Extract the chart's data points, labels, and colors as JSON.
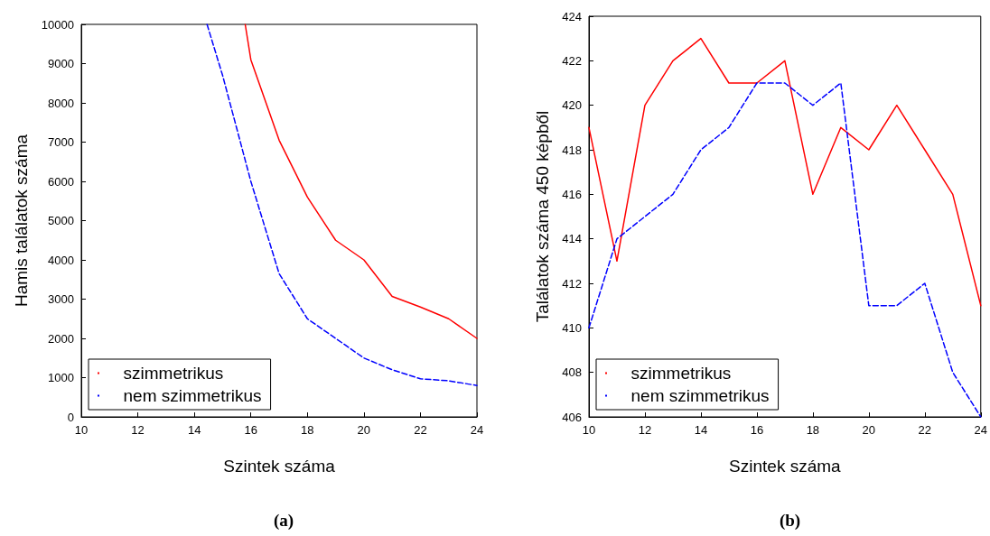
{
  "chart_data": [
    {
      "type": "line",
      "title": "(a)",
      "xlabel": "Szintek száma",
      "ylabel": "Hamis találatok száma",
      "xlim": [
        10,
        24
      ],
      "xticks": [
        10,
        12,
        14,
        16,
        18,
        20,
        22,
        24
      ],
      "ylim": [
        0,
        10000
      ],
      "yticks": [
        0,
        1000,
        2000,
        3000,
        4000,
        5000,
        6000,
        7000,
        8000,
        9000,
        10000
      ],
      "grid": false,
      "legend": "bottom left",
      "marker": "none",
      "series": [
        {
          "name": "szimmetrikus",
          "color": "#ff0000",
          "line_style": "solid",
          "x": [
            15.8,
            16,
            17,
            18,
            19,
            20,
            21,
            22,
            23,
            24
          ],
          "values": [
            10000,
            9100,
            7050,
            5600,
            4500,
            4000,
            3070,
            2800,
            2500,
            2000
          ]
        },
        {
          "name": "nem szimmetrikus",
          "color": "#0000ff",
          "line_style": "dashed",
          "x": [
            14.45,
            15,
            16,
            17,
            18,
            19,
            20,
            21,
            22,
            23,
            24
          ],
          "values": [
            10000,
            8700,
            6000,
            3650,
            2500,
            2000,
            1500,
            1200,
            970,
            920,
            800
          ]
        }
      ]
    },
    {
      "type": "line",
      "title": "(b)",
      "xlabel": "Szintek száma",
      "ylabel": "Találatok száma 450 képből",
      "xlim": [
        10,
        24
      ],
      "xticks": [
        10,
        12,
        14,
        16,
        18,
        20,
        22,
        24
      ],
      "ylim": [
        406,
        424
      ],
      "yticks": [
        406,
        408,
        410,
        412,
        414,
        416,
        418,
        420,
        422,
        424
      ],
      "grid": false,
      "legend": "bottom left",
      "marker": "none",
      "series": [
        {
          "name": "szimmetrikus",
          "color": "#ff0000",
          "line_style": "solid",
          "x": [
            10,
            11,
            12,
            13,
            14,
            15,
            16,
            17,
            18,
            19,
            20,
            21,
            22,
            23,
            24
          ],
          "values": [
            419,
            413,
            420,
            422,
            423,
            421,
            421,
            422,
            416,
            419,
            418,
            420,
            418,
            416,
            411
          ]
        },
        {
          "name": "nem szimmetrikus",
          "color": "#0000ff",
          "line_style": "dashed",
          "x": [
            10,
            11,
            12,
            13,
            14,
            15,
            16,
            17,
            18,
            19,
            20,
            21,
            22,
            23,
            24
          ],
          "values": [
            410,
            414,
            415,
            416,
            418,
            419,
            421,
            421,
            420,
            421,
            411,
            411,
            412,
            408,
            406
          ]
        }
      ]
    }
  ]
}
